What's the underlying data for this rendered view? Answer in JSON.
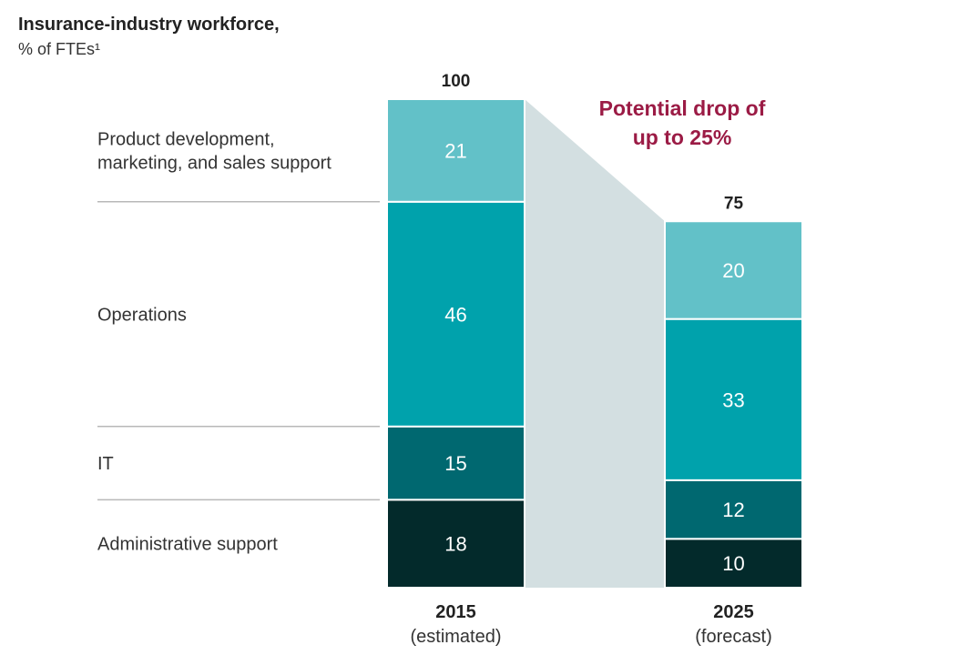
{
  "header": {
    "title": "Insurance-industry workforce,",
    "subtitle": "% of FTEs¹"
  },
  "chart_data": {
    "type": "bar",
    "stacked": true,
    "categories": [
      "2015 (estimated)",
      "2025 (forecast)"
    ],
    "category_lines": [
      [
        "2015",
        "(estimated)"
      ],
      [
        "2025",
        "(forecast)"
      ]
    ],
    "totals": [
      "100",
      "75"
    ],
    "series": [
      {
        "name": "Administrative support",
        "values": [
          18,
          10
        ],
        "color": "#032a2b"
      },
      {
        "name": "IT",
        "values": [
          15,
          12
        ],
        "color": "#006870"
      },
      {
        "name": "Operations",
        "values": [
          46,
          33
        ],
        "color": "#00a2ac"
      },
      {
        "name": "Product development, marketing, and sales support",
        "label_lines": [
          "Product development,",
          "marketing, and sales support"
        ],
        "values": [
          21,
          20
        ],
        "color": "#62c1c8"
      }
    ],
    "annotation": {
      "lines": [
        "Potential drop of",
        "up to 25%"
      ],
      "color": "#9b1b45"
    },
    "drop_band_color": "#d3dfe1",
    "divider_color": "#b8b8b8",
    "ylim": [
      0,
      100
    ]
  }
}
